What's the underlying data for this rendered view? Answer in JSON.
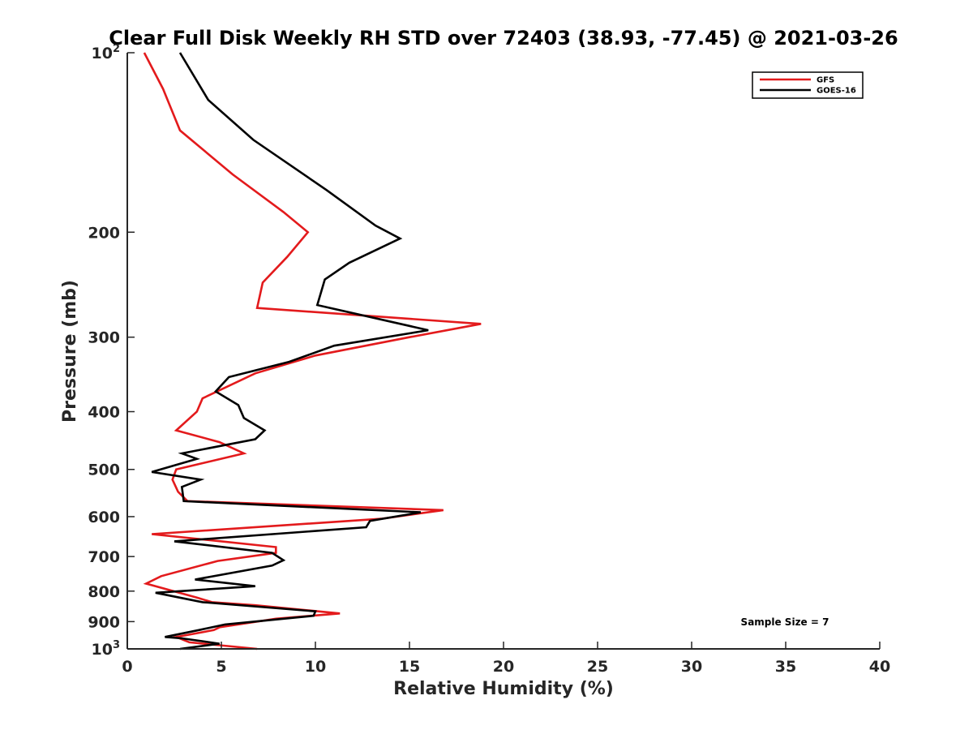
{
  "chart_data": {
    "type": "line",
    "title": "Clear Full Disk Weekly RH STD over 72403 (38.93, -77.45) @ 2021-03-26",
    "xlabel": "Relative Humidity (%)",
    "ylabel": "Pressure (mb)",
    "xlim": [
      0,
      40
    ],
    "ylim": [
      100,
      1000
    ],
    "y_scale": "log",
    "y_reversed": true,
    "x_ticks": [
      "0",
      "5",
      "10",
      "15",
      "20",
      "25",
      "30",
      "35",
      "40"
    ],
    "y_ticks": [
      {
        "value": 100,
        "base": "10",
        "exp": "2"
      },
      {
        "value": 200,
        "label": "200"
      },
      {
        "value": 300,
        "label": "300"
      },
      {
        "value": 400,
        "label": "400"
      },
      {
        "value": 500,
        "label": "500"
      },
      {
        "value": 600,
        "label": "600"
      },
      {
        "value": 700,
        "label": "700"
      },
      {
        "value": 800,
        "label": "800"
      },
      {
        "value": 900,
        "label": "900"
      },
      {
        "value": 1000,
        "base": "10",
        "exp": "3"
      }
    ],
    "legend_position": "top-right",
    "annotation": "Sample Size = 7",
    "series": [
      {
        "name": "GFS",
        "color": "#e31a1c",
        "points": [
          [
            0.9,
            100
          ],
          [
            1.9,
            115
          ],
          [
            2.8,
            135
          ],
          [
            5.6,
            160
          ],
          [
            8.3,
            185
          ],
          [
            9.6,
            200
          ],
          [
            8.5,
            220
          ],
          [
            7.2,
            243
          ],
          [
            6.9,
            268
          ],
          [
            18.8,
            285
          ],
          [
            15.0,
            300
          ],
          [
            10.0,
            322
          ],
          [
            6.8,
            345
          ],
          [
            4.0,
            380
          ],
          [
            3.7,
            400
          ],
          [
            2.6,
            430
          ],
          [
            4.9,
            450
          ],
          [
            6.2,
            470
          ],
          [
            2.6,
            500
          ],
          [
            2.4,
            520
          ],
          [
            2.7,
            545
          ],
          [
            3.2,
            565
          ],
          [
            16.8,
            585
          ],
          [
            13.5,
            605
          ],
          [
            1.3,
            642
          ],
          [
            7.9,
            675
          ],
          [
            7.9,
            690
          ],
          [
            4.8,
            712
          ],
          [
            1.8,
            755
          ],
          [
            1.0,
            777
          ],
          [
            3.7,
            820
          ],
          [
            4.5,
            835
          ],
          [
            6.8,
            845
          ],
          [
            11.3,
            872
          ],
          [
            7.9,
            890
          ],
          [
            4.9,
            920
          ],
          [
            4.6,
            930
          ],
          [
            2.6,
            955
          ],
          [
            3.3,
            975
          ],
          [
            6.9,
            1000
          ]
        ]
      },
      {
        "name": "GOES-16",
        "color": "#000000",
        "points": [
          [
            2.8,
            100
          ],
          [
            4.3,
            120
          ],
          [
            6.7,
            140
          ],
          [
            10.6,
            170
          ],
          [
            13.2,
            195
          ],
          [
            14.5,
            205
          ],
          [
            11.8,
            225
          ],
          [
            10.5,
            240
          ],
          [
            10.1,
            265
          ],
          [
            16.0,
            292
          ],
          [
            11.0,
            310
          ],
          [
            8.6,
            330
          ],
          [
            5.4,
            350
          ],
          [
            4.7,
            370
          ],
          [
            5.9,
            390
          ],
          [
            6.2,
            410
          ],
          [
            7.3,
            430
          ],
          [
            6.8,
            445
          ],
          [
            2.9,
            470
          ],
          [
            3.7,
            480
          ],
          [
            1.3,
            505
          ],
          [
            3.9,
            520
          ],
          [
            2.9,
            535
          ],
          [
            3.0,
            565
          ],
          [
            15.6,
            590
          ],
          [
            12.9,
            610
          ],
          [
            12.7,
            625
          ],
          [
            2.5,
            660
          ],
          [
            7.7,
            690
          ],
          [
            8.3,
            710
          ],
          [
            7.7,
            725
          ],
          [
            3.6,
            765
          ],
          [
            6.8,
            785
          ],
          [
            1.5,
            805
          ],
          [
            4.0,
            835
          ],
          [
            10.0,
            865
          ],
          [
            9.9,
            880
          ],
          [
            5.2,
            910
          ],
          [
            3.8,
            930
          ],
          [
            2.0,
            955
          ],
          [
            2.9,
            960
          ],
          [
            4.9,
            980
          ],
          [
            2.8,
            1000
          ]
        ]
      }
    ]
  }
}
